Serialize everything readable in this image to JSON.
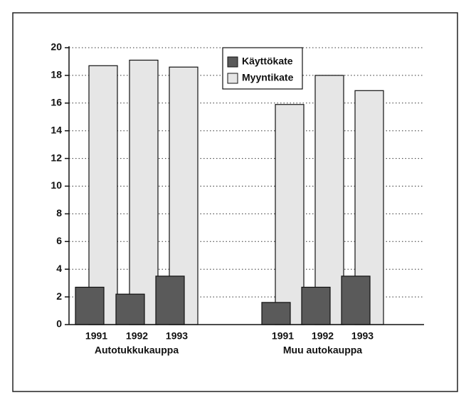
{
  "chart_data": {
    "type": "bar",
    "categories": [
      "1991",
      "1992",
      "1993",
      "1991",
      "1992",
      "1993"
    ],
    "groups": [
      "Autotukkukauppa",
      "Muu autokauppa"
    ],
    "series": [
      {
        "name": "Käyttökate",
        "color": "#5a5a5a",
        "values": [
          2.7,
          2.2,
          3.5,
          1.6,
          2.7,
          3.5
        ]
      },
      {
        "name": "Myyntikate",
        "color": "#e6e6e6",
        "values": [
          18.7,
          19.1,
          18.6,
          15.9,
          18.0,
          16.9
        ]
      }
    ],
    "ylim": [
      0,
      20
    ],
    "yticks": [
      0,
      2,
      4,
      6,
      8,
      10,
      12,
      14,
      16,
      18,
      20
    ],
    "grid": true,
    "legend": "top"
  }
}
